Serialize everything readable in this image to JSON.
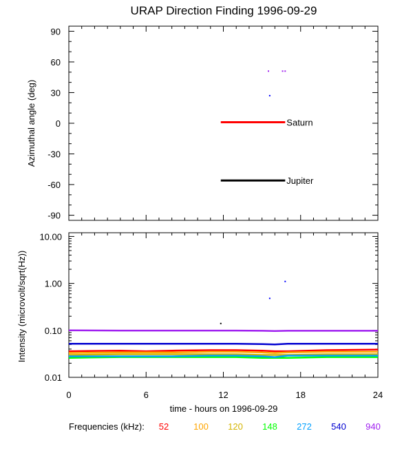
{
  "chart_data": [
    {
      "type": "scatter",
      "title": "URAP Direction Finding  1996-09-29",
      "ylabel": "Azimuthal angle (deg)",
      "xlim": [
        0,
        24
      ],
      "ylim": [
        -95,
        95
      ],
      "yticks": [
        "90",
        "60",
        "30",
        "0",
        "-30",
        "-60",
        "-90"
      ],
      "ytick_values": [
        90,
        60,
        30,
        0,
        -30,
        -60,
        -90
      ],
      "annotations": [
        {
          "label": "Saturn",
          "y": 1,
          "x_start": 11.8,
          "x_end": 16.8,
          "color": "#ff0000"
        },
        {
          "label": "Jupiter",
          "y": -56,
          "x_start": 11.8,
          "x_end": 16.8,
          "color": "#000000"
        }
      ],
      "points": [
        {
          "x": 15.5,
          "y": 51,
          "color": "#a020f0"
        },
        {
          "x": 16.6,
          "y": 51,
          "color": "#a020f0"
        },
        {
          "x": 16.8,
          "y": 51,
          "color": "#a020f0"
        },
        {
          "x": 15.6,
          "y": 27,
          "color": "#0000ff"
        }
      ]
    },
    {
      "type": "line",
      "ylabel": "Intensity (microvolt/sqrt(Hz))",
      "xlabel": "time - hours on 1996-09-29",
      "xlim": [
        0,
        24
      ],
      "ylim": [
        0.01,
        12
      ],
      "yscale": "log",
      "yticks": [
        "10.00",
        "1.00",
        "0.10",
        "0.01"
      ],
      "ytick_values": [
        10,
        1,
        0.1,
        0.01
      ],
      "xticks": [
        "0",
        "6",
        "12",
        "18",
        "24"
      ],
      "xtick_values": [
        0,
        6,
        12,
        18,
        24
      ],
      "legend_label": "Frequencies (kHz):",
      "series": [
        {
          "name": "52",
          "color": "#ff0000",
          "x": [
            0,
            4,
            6,
            8,
            11,
            13,
            15,
            16,
            17,
            20,
            24
          ],
          "y": [
            0.036,
            0.037,
            0.036,
            0.037,
            0.038,
            0.038,
            0.037,
            0.036,
            0.036,
            0.038,
            0.039
          ]
        },
        {
          "name": "100",
          "color": "#ffa500",
          "x": [
            0,
            4,
            6,
            8,
            11,
            13,
            15,
            16,
            17,
            20,
            24
          ],
          "y": [
            0.033,
            0.034,
            0.034,
            0.034,
            0.035,
            0.035,
            0.034,
            0.033,
            0.034,
            0.035,
            0.035
          ]
        },
        {
          "name": "120",
          "color": "#d4b400",
          "x": [
            0,
            4,
            6,
            8,
            11,
            13,
            15,
            16,
            17,
            20,
            24
          ],
          "y": [
            0.03,
            0.031,
            0.031,
            0.031,
            0.031,
            0.031,
            0.03,
            0.03,
            0.03,
            0.031,
            0.031
          ]
        },
        {
          "name": "148",
          "color": "#00ff00",
          "x": [
            0,
            4,
            6,
            8,
            11,
            13,
            15,
            16,
            17,
            20,
            24
          ],
          "y": [
            0.026,
            0.027,
            0.027,
            0.027,
            0.027,
            0.027,
            0.026,
            0.026,
            0.026,
            0.027,
            0.027
          ]
        },
        {
          "name": "272",
          "color": "#00a0ff",
          "x": [
            0,
            4,
            6,
            8,
            11,
            13,
            15,
            16,
            17,
            20,
            24
          ],
          "y": [
            0.028,
            0.028,
            0.028,
            0.028,
            0.029,
            0.029,
            0.028,
            0.027,
            0.029,
            0.029,
            0.029
          ]
        },
        {
          "name": "540",
          "color": "#0000d0",
          "x": [
            0,
            4,
            6,
            8,
            11,
            13,
            15,
            16,
            17,
            20,
            24
          ],
          "y": [
            0.052,
            0.052,
            0.052,
            0.052,
            0.052,
            0.052,
            0.051,
            0.05,
            0.052,
            0.052,
            0.052
          ]
        },
        {
          "name": "940",
          "color": "#a020f0",
          "x": [
            0,
            4,
            6,
            8,
            11,
            13,
            15,
            16,
            17,
            20,
            24
          ],
          "y": [
            0.1,
            0.099,
            0.099,
            0.099,
            0.099,
            0.099,
            0.098,
            0.097,
            0.098,
            0.098,
            0.098
          ]
        }
      ],
      "spikes": [
        {
          "x": 11.8,
          "y": 0.14,
          "color": "#000000"
        },
        {
          "x": 15.6,
          "y": 0.48,
          "color": "#0000ff"
        },
        {
          "x": 16.8,
          "y": 1.1,
          "color": "#0000ff"
        }
      ]
    }
  ]
}
